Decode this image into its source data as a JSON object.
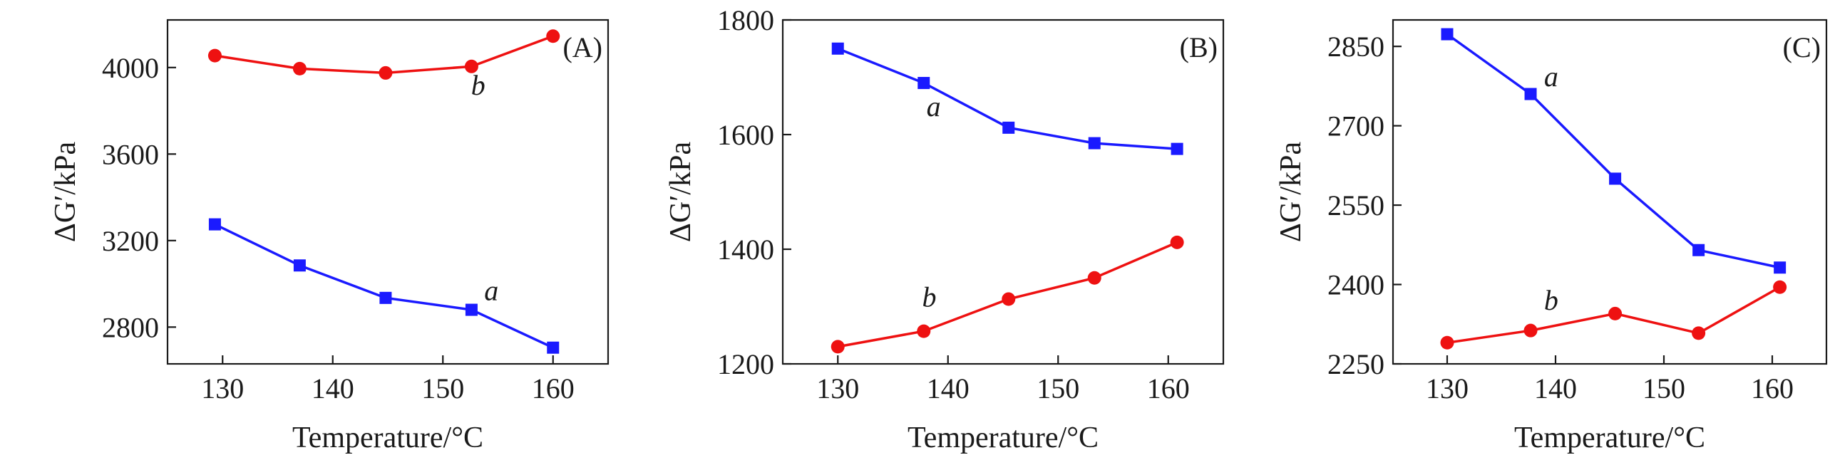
{
  "chart_data": [
    {
      "type": "line",
      "panel_label": "(A)",
      "xlabel": "Temperature/°C",
      "ylabel": "ΔG′/kPa",
      "xlim": [
        125,
        165
      ],
      "ylim": [
        2630,
        4220
      ],
      "xticks": [
        130,
        140,
        150,
        160
      ],
      "yticks": [
        2800,
        3200,
        3600,
        4000
      ],
      "series": [
        {
          "name": "a",
          "marker": "square",
          "color": "#1a1aff",
          "x": [
            129.3,
            137.0,
            144.8,
            152.6,
            160.0
          ],
          "y": [
            3275,
            3085,
            2935,
            2880,
            2705
          ],
          "label_pos": {
            "x": 154.4,
            "y": 2925
          }
        },
        {
          "name": "b",
          "marker": "circle",
          "color": "#ee1111",
          "x": [
            129.3,
            137.0,
            144.8,
            152.6,
            160.0
          ],
          "y": [
            4055,
            3995,
            3975,
            4005,
            4145
          ],
          "label_pos": {
            "x": 153.2,
            "y": 3875
          }
        }
      ]
    },
    {
      "type": "line",
      "panel_label": "(B)",
      "xlabel": "Temperature/°C",
      "ylabel": "ΔG′/kPa",
      "xlim": [
        125,
        165
      ],
      "ylim": [
        1200,
        1800
      ],
      "xticks": [
        130,
        140,
        150,
        160
      ],
      "yticks": [
        1200,
        1400,
        1600,
        1800
      ],
      "series": [
        {
          "name": "a",
          "marker": "square",
          "color": "#1a1aff",
          "x": [
            130.0,
            137.8,
            145.5,
            153.3,
            160.8
          ],
          "y": [
            1750,
            1690,
            1612,
            1585,
            1575
          ],
          "label_pos": {
            "x": 138.7,
            "y": 1632
          }
        },
        {
          "name": "b",
          "marker": "circle",
          "color": "#ee1111",
          "x": [
            130.0,
            137.8,
            145.5,
            153.3,
            160.8
          ],
          "y": [
            1230,
            1257,
            1313,
            1350,
            1412
          ],
          "label_pos": {
            "x": 138.3,
            "y": 1300
          }
        }
      ]
    },
    {
      "type": "line",
      "panel_label": "(C)",
      "xlabel": "Temperature/°C",
      "ylabel": "ΔG′/kPa",
      "xlim": [
        125,
        165
      ],
      "ylim": [
        2250,
        2900
      ],
      "xticks": [
        130,
        140,
        150,
        160
      ],
      "yticks": [
        2250,
        2400,
        2550,
        2700,
        2850
      ],
      "series": [
        {
          "name": "a",
          "marker": "square",
          "color": "#1a1aff",
          "x": [
            130.0,
            137.7,
            145.5,
            153.2,
            160.7
          ],
          "y": [
            2873,
            2760,
            2600,
            2465,
            2432
          ],
          "label_pos": {
            "x": 139.6,
            "y": 2775
          }
        },
        {
          "name": "b",
          "marker": "circle",
          "color": "#ee1111",
          "x": [
            130.0,
            137.7,
            145.5,
            153.2,
            160.7
          ],
          "y": [
            2290,
            2313,
            2345,
            2308,
            2395
          ],
          "label_pos": {
            "x": 139.6,
            "y": 2352
          }
        }
      ]
    }
  ]
}
